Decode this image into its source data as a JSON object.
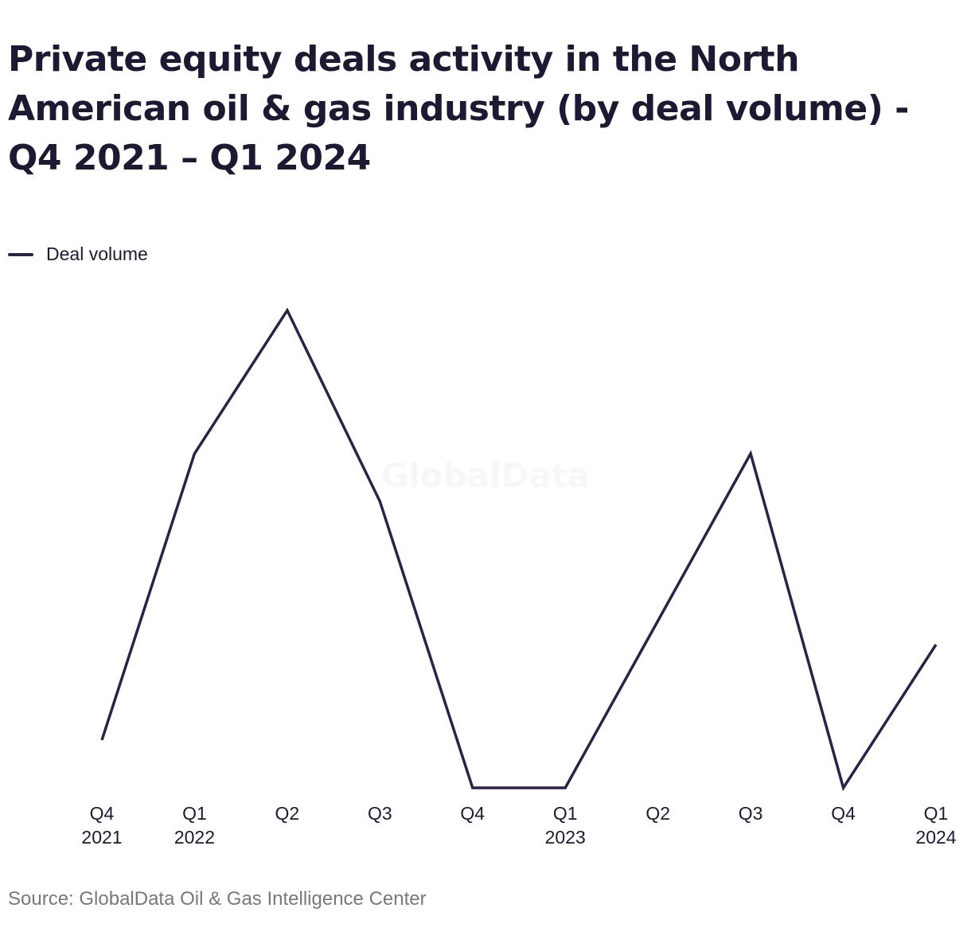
{
  "title": "Private equity deals activity in the North American oil & gas industry (by deal volume) - Q4 2021 – Q1 2024",
  "watermark": "GlobalData",
  "source": "Source: GlobalData Oil & Gas Intelligence Center",
  "colors": {
    "series": "#2e2148",
    "watermark": "#f7f7f7",
    "text": "#1c1a33",
    "muted": "#787878"
  },
  "chart_data": {
    "type": "line",
    "title": "Private equity deals activity in the North American oil & gas industry (by deal volume) - Q4 2021 – Q1 2024",
    "categories": [
      [
        "Q4",
        "2021"
      ],
      [
        "Q1",
        "2022"
      ],
      [
        "Q2",
        ""
      ],
      [
        "Q3",
        ""
      ],
      [
        "Q4",
        ""
      ],
      [
        "Q1",
        "2023"
      ],
      [
        "Q2",
        ""
      ],
      [
        "Q3",
        ""
      ],
      [
        "Q4",
        ""
      ],
      [
        "Q1",
        "2024"
      ]
    ],
    "series": [
      {
        "name": "Deal volume",
        "values": [
          2,
          8,
          11,
          7,
          1,
          1,
          4.5,
          8,
          1,
          4
        ]
      }
    ],
    "ylim": [
      1,
      11
    ],
    "grid": false,
    "legend": "top-left",
    "xlabel": "",
    "ylabel": ""
  }
}
